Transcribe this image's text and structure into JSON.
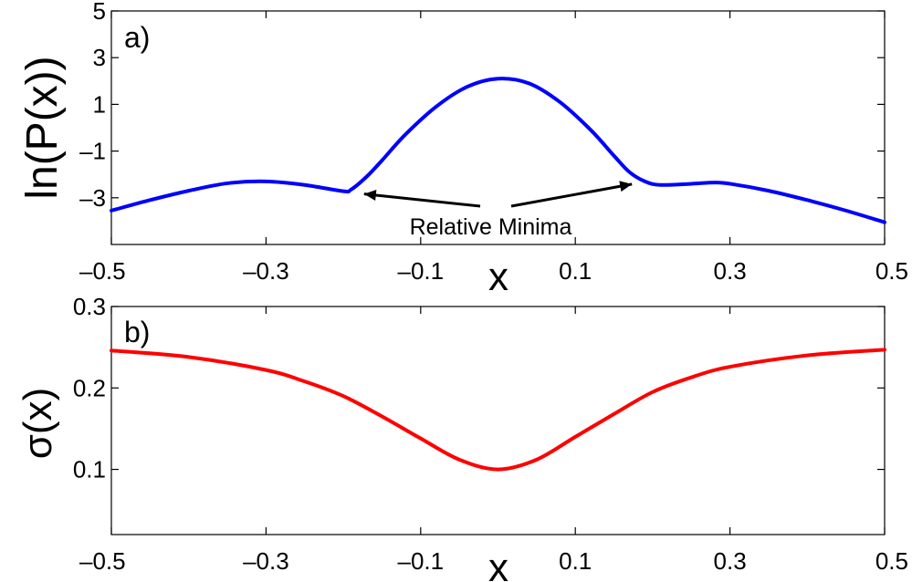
{
  "chart_data": [
    {
      "type": "line",
      "panel_label": "a)",
      "xlabel": "x",
      "ylabel": "ln(P(x))",
      "xlim": [
        -0.5,
        0.5
      ],
      "ylim": [
        -5,
        5
      ],
      "xticks": [
        -0.5,
        -0.3,
        -0.1,
        0.1,
        0.3,
        0.5
      ],
      "xtick_labels": [
        "–0.5",
        "–0.3",
        "–0.1",
        "0.1",
        "0.3",
        "0.5"
      ],
      "yticks": [
        -3,
        -1,
        1,
        3,
        5
      ],
      "ytick_labels": [
        "–3",
        "–1",
        "1",
        "3",
        "5"
      ],
      "grid": false,
      "color": "#0000ff",
      "series": [
        {
          "x": [
            -0.5,
            -0.45,
            -0.4,
            -0.35,
            -0.3,
            -0.25,
            -0.2,
            -0.19,
            -0.17,
            -0.15,
            -0.12,
            -0.08,
            -0.04,
            0.0,
            0.04,
            0.08,
            0.12,
            0.15,
            0.17,
            0.19,
            0.21,
            0.25,
            0.28,
            0.3,
            0.35,
            0.4,
            0.45,
            0.5
          ],
          "y": [
            -3.55,
            -3.1,
            -2.7,
            -2.38,
            -2.3,
            -2.45,
            -2.72,
            -2.65,
            -2.1,
            -1.4,
            -0.3,
            0.9,
            1.75,
            2.1,
            1.9,
            1.1,
            -0.1,
            -1.2,
            -1.9,
            -2.3,
            -2.45,
            -2.4,
            -2.35,
            -2.4,
            -2.7,
            -3.1,
            -3.55,
            -4.05
          ]
        }
      ],
      "annotations": [
        {
          "text": "Relative Minima",
          "points_to": [
            [
              -0.185,
              -2.72
            ],
            [
              0.185,
              -2.3
            ]
          ]
        }
      ]
    },
    {
      "type": "line",
      "panel_label": "b)",
      "xlabel": "x",
      "ylabel": "σ(x)",
      "xlim": [
        -0.5,
        0.5
      ],
      "ylim": [
        0.02,
        0.3
      ],
      "xticks": [
        -0.5,
        -0.3,
        -0.1,
        0.1,
        0.3,
        0.5
      ],
      "xtick_labels": [
        "–0.5",
        "–0.3",
        "–0.1",
        "0.1",
        "0.3",
        "0.5"
      ],
      "yticks": [
        0.1,
        0.2,
        0.3
      ],
      "ytick_labels": [
        "0.1",
        "0.2",
        "0.3"
      ],
      "grid": false,
      "color": "#ff0000",
      "series": [
        {
          "x": [
            -0.5,
            -0.4,
            -0.3,
            -0.25,
            -0.2,
            -0.15,
            -0.1,
            -0.05,
            0.0,
            0.05,
            0.1,
            0.15,
            0.2,
            0.25,
            0.3,
            0.4,
            0.5
          ],
          "y": [
            0.246,
            0.238,
            0.222,
            0.208,
            0.19,
            0.165,
            0.138,
            0.112,
            0.1,
            0.112,
            0.14,
            0.168,
            0.195,
            0.213,
            0.226,
            0.24,
            0.247
          ]
        }
      ]
    }
  ]
}
